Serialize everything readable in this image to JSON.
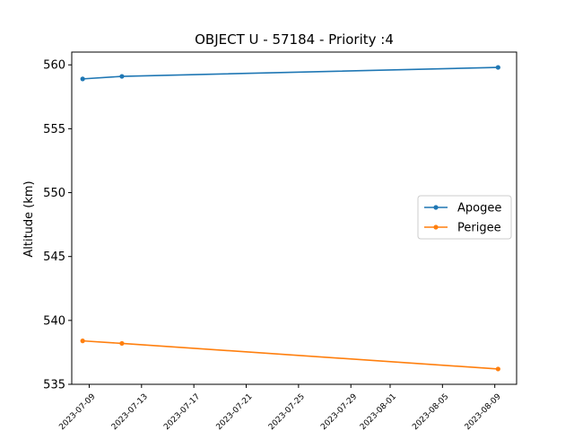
{
  "chart_data": {
    "type": "line",
    "title": "OBJECT U - 57184 - Priority :4",
    "xlabel": "",
    "ylabel": "Altitude (km)",
    "ylim": [
      535,
      561
    ],
    "xlim": [
      "2023-07-07T16:00",
      "2023-08-10T16:00"
    ],
    "y_ticks": [
      535,
      540,
      545,
      550,
      555,
      560
    ],
    "x_ticks": [
      "2023-07-09",
      "2023-07-13",
      "2023-07-17",
      "2023-07-21",
      "2023-07-25",
      "2023-07-29",
      "2023-08-01",
      "2023-08-05",
      "2023-08-09"
    ],
    "legend_position": "center-right",
    "grid": false,
    "series": [
      {
        "name": "Apogee",
        "color": "#1f77b4",
        "x": [
          "2023-07-08T12:00",
          "2023-07-11T12:00",
          "2023-08-09T06:00"
        ],
        "values": [
          558.9,
          559.1,
          559.8
        ]
      },
      {
        "name": "Perigee",
        "color": "#ff7f0e",
        "x": [
          "2023-07-08T12:00",
          "2023-07-11T12:00",
          "2023-08-09T06:00"
        ],
        "values": [
          538.4,
          538.2,
          536.2
        ]
      }
    ]
  }
}
